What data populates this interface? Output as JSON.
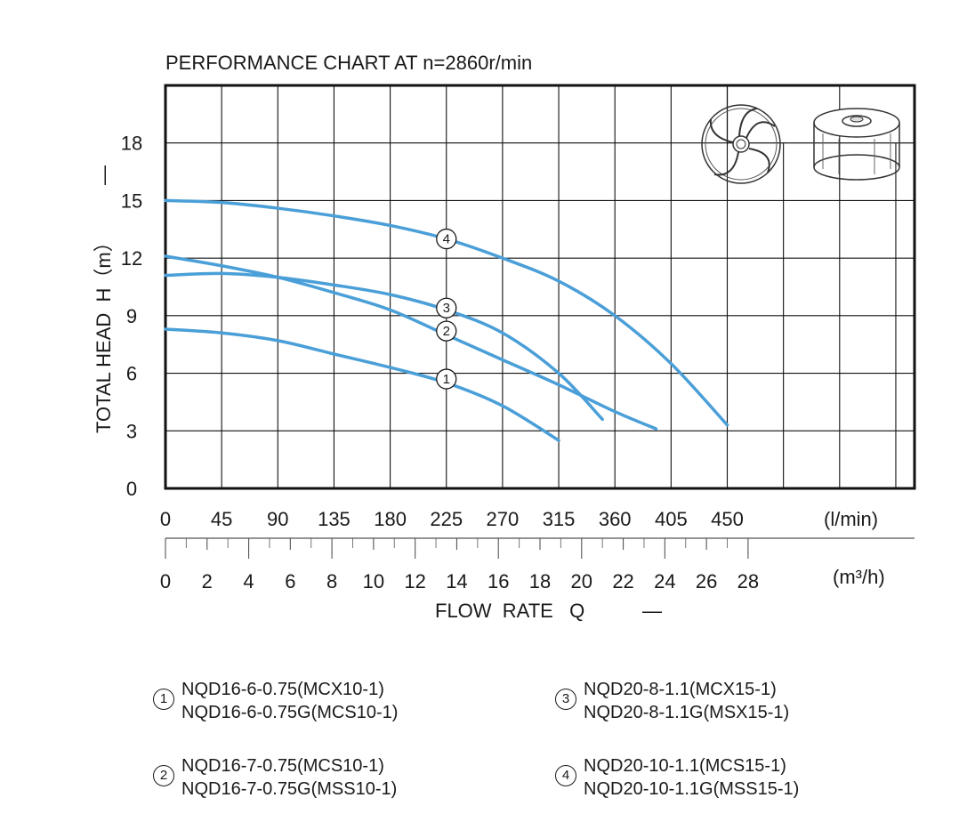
{
  "chart_data": {
    "type": "line",
    "title": "PERFORMANCE  CHART AT  n=2860r/min",
    "ylabel": "TOTAL HEAD  H（m）",
    "ylabel_dash": "—",
    "xlabel": "FLOW  RATE   Q",
    "xlabel_dash": "—",
    "x_unit": "(l/min)",
    "x2_unit": "(m³/h)",
    "xlim": [
      0,
      600
    ],
    "ylim": [
      0,
      21
    ],
    "grid": true,
    "x_ticks": [
      "0",
      "45",
      "90",
      "135",
      "180",
      "225",
      "270",
      "315",
      "360",
      "405",
      "450"
    ],
    "x2_ticks": [
      "0",
      "2",
      "4",
      "6",
      "8",
      "10",
      "12",
      "14",
      "16",
      "18",
      "20",
      "22",
      "24",
      "26",
      "28"
    ],
    "y_ticks": [
      "0",
      "3",
      "6",
      "9",
      "12",
      "15",
      "18"
    ],
    "series": [
      {
        "id": "1",
        "color": "#4a9fd8",
        "x": [
          0,
          45,
          90,
          135,
          180,
          225,
          270,
          315
        ],
        "y": [
          8.3,
          8.1,
          7.7,
          7.0,
          6.3,
          5.5,
          4.3,
          2.5
        ]
      },
      {
        "id": "2",
        "color": "#4a9fd8",
        "x": [
          0,
          45,
          90,
          135,
          180,
          225,
          270,
          315,
          360,
          393
        ],
        "y": [
          12.1,
          11.6,
          11.0,
          10.2,
          9.3,
          8.0,
          6.7,
          5.4,
          4.0,
          3.1
        ]
      },
      {
        "id": "3",
        "color": "#4a9fd8",
        "x": [
          0,
          45,
          90,
          135,
          180,
          225,
          270,
          315,
          350
        ],
        "y": [
          11.1,
          11.2,
          11.0,
          10.6,
          10.1,
          9.3,
          8.1,
          6.0,
          3.6
        ]
      },
      {
        "id": "4",
        "color": "#4a9fd8",
        "x": [
          0,
          45,
          90,
          135,
          180,
          225,
          270,
          315,
          360,
          405,
          450
        ],
        "y": [
          15.0,
          14.9,
          14.6,
          14.2,
          13.7,
          13.0,
          12.0,
          10.8,
          9.0,
          6.5,
          3.3
        ]
      }
    ],
    "curve_labels": [
      {
        "text": "1",
        "x": 225,
        "y": 5.7
      },
      {
        "text": "2",
        "x": 225,
        "y": 8.2
      },
      {
        "text": "3",
        "x": 225,
        "y": 9.4
      },
      {
        "text": "4",
        "x": 225,
        "y": 13.0
      }
    ]
  },
  "legend": [
    {
      "marker": "1",
      "lines": [
        "NQD16-6-0.75(MCX10-1)",
        "NQD16-6-0.75G(MCS10-1)"
      ]
    },
    {
      "marker": "3",
      "lines": [
        "NQD20-8-1.1(MCX15-1)",
        "NQD20-8-1.1G(MSX15-1)"
      ]
    },
    {
      "marker": "2",
      "lines": [
        "NQD16-7-0.75(MCS10-1)",
        "NQD16-7-0.75G(MSS10-1)"
      ]
    },
    {
      "marker": "4",
      "lines": [
        "NQD20-10-1.1(MCS15-1)",
        "NQD20-10-1.1G(MSS15-1)"
      ]
    }
  ],
  "images": {
    "impeller_icon": "open-impeller-icon",
    "closed_impeller_icon": "closed-impeller-icon"
  }
}
